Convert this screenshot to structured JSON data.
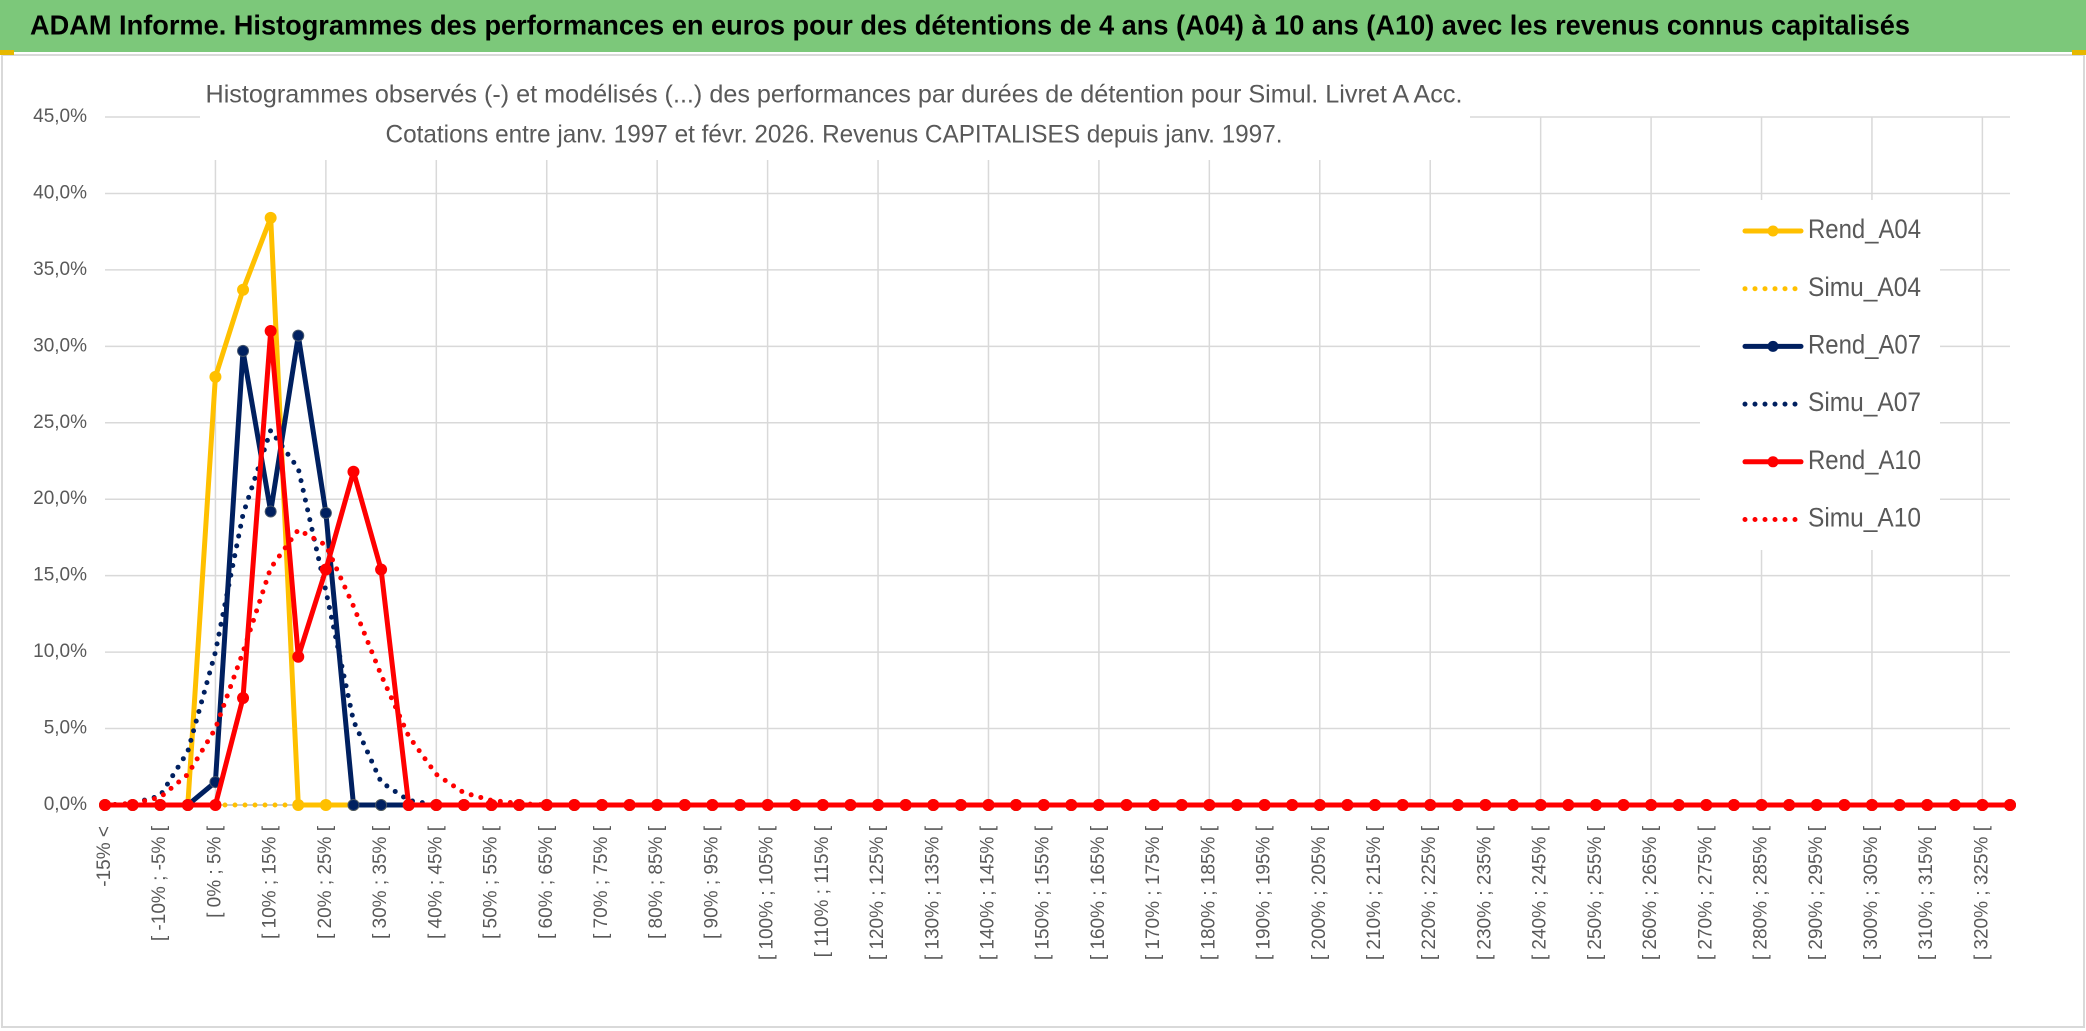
{
  "header": {
    "title": "ADAM Informe. Histogrammes des performances en euros pour des détentions de 4 ans (A04) à 10 ans (A10) avec les revenus connus capitalisés"
  },
  "chart_data": {
    "type": "line",
    "title": "Histogrammes observés (-) et modélisés (...) des performances par durées de détention pour Simul. Livret A Acc.",
    "subtitle": "Cotations entre janv. 1997 et févr. 2026. Revenus CAPITALISES depuis janv. 1997.",
    "categories": [
      "-15% <",
      null,
      "[ -10% ; -5% [",
      null,
      "[ 0% ; 5% [",
      null,
      "[ 10% ; 15% [",
      null,
      "[ 20% ; 25% [",
      null,
      "[ 30% ; 35% [",
      null,
      "[ 40% ; 45% [",
      null,
      "[ 50% ; 55% [",
      null,
      "[ 60% ; 65% [",
      null,
      "[ 70% ; 75% [",
      null,
      "[ 80% ; 85% [",
      null,
      "[ 90% ; 95% [",
      null,
      "[ 100% ; 105% [",
      null,
      "[ 110% ; 115% [",
      null,
      "[ 120% ; 125% [",
      null,
      "[ 130% ; 135% [",
      null,
      "[ 140% ; 145% [",
      null,
      "[ 150% ; 155% [",
      null,
      "[ 160% ; 165% [",
      null,
      "[ 170% ; 175% [",
      null,
      "[ 180% ; 185% [",
      null,
      "[ 190% ; 195% [",
      null,
      "[ 200% ; 205% [",
      null,
      "[ 210% ; 215% [",
      null,
      "[ 220% ; 225% [",
      null,
      "[ 230% ; 235% [",
      null,
      "[ 240% ; 245% [",
      null,
      "[ 250% ; 255% [",
      null,
      "[ 260% ; 265% [",
      null,
      "[ 270% ; 275% [",
      null,
      "[ 280% ; 285% [",
      null,
      "[ 290% ; 295% [",
      null,
      "[ 300% ; 305% [",
      null,
      "[ 310% ; 315% [",
      null,
      "[ 320% ; 325% [",
      null
    ],
    "series": [
      {
        "name": "Rend_A04",
        "color": "#ffc000",
        "style": "solid",
        "values": [
          0,
          0,
          0,
          0,
          28,
          33.7,
          38.4,
          0,
          0,
          0,
          0,
          0,
          0,
          0,
          0,
          0,
          0,
          0,
          0,
          0,
          0,
          0,
          0,
          0,
          0,
          0,
          0,
          0,
          0,
          0,
          0,
          0,
          0,
          0,
          0,
          0,
          0,
          0,
          0,
          0,
          0,
          0,
          0,
          0,
          0,
          0,
          0,
          0,
          0,
          0,
          0,
          0,
          0,
          0,
          0,
          0,
          0,
          0,
          0,
          0,
          0,
          0,
          0,
          0,
          0,
          0,
          0,
          0,
          0,
          0
        ]
      },
      {
        "name": "Simu_A04",
        "color": "#ffc000",
        "style": "dotted",
        "values": [
          0,
          0,
          0,
          0,
          0,
          0,
          0,
          0,
          0,
          0,
          0,
          0,
          0,
          0,
          0,
          0,
          0,
          0,
          0,
          0,
          0,
          0,
          0,
          0,
          0,
          0,
          0,
          0,
          0,
          0,
          0,
          0,
          0,
          0,
          0,
          0,
          0,
          0,
          0,
          0,
          0,
          0,
          0,
          0,
          0,
          0,
          0,
          0,
          0,
          0,
          0,
          0,
          0,
          0,
          0,
          0,
          0,
          0,
          0,
          0,
          0,
          0,
          0,
          0,
          0,
          0,
          0,
          0,
          0,
          0
        ]
      },
      {
        "name": "Rend_A07",
        "color": "#002060",
        "style": "solid",
        "values": [
          0,
          0,
          0,
          0,
          1.5,
          29.7,
          19.2,
          30.7,
          19.1,
          0,
          0,
          0,
          0,
          0,
          0,
          0,
          0,
          0,
          0,
          0,
          0,
          0,
          0,
          0,
          0,
          0,
          0,
          0,
          0,
          0,
          0,
          0,
          0,
          0,
          0,
          0,
          0,
          0,
          0,
          0,
          0,
          0,
          0,
          0,
          0,
          0,
          0,
          0,
          0,
          0,
          0,
          0,
          0,
          0,
          0,
          0,
          0,
          0,
          0,
          0,
          0,
          0,
          0,
          0,
          0,
          0,
          0,
          0,
          0,
          0
        ]
      },
      {
        "name": "Simu_A07",
        "color": "#002060",
        "style": "dotted",
        "values": [
          0,
          0.1,
          0.6,
          3.5,
          10,
          19,
          24.5,
          22,
          14,
          5.5,
          1.5,
          0.3,
          0,
          0,
          0,
          0,
          0,
          0,
          0,
          0,
          0,
          0,
          0,
          0,
          0,
          0,
          0,
          0,
          0,
          0,
          0,
          0,
          0,
          0,
          0,
          0,
          0,
          0,
          0,
          0,
          0,
          0,
          0,
          0,
          0,
          0,
          0,
          0,
          0,
          0,
          0,
          0,
          0,
          0,
          0,
          0,
          0,
          0,
          0,
          0,
          0,
          0,
          0,
          0,
          0,
          0,
          0,
          0,
          0,
          0
        ]
      },
      {
        "name": "Rend_A10",
        "color": "#ff0000",
        "style": "solid",
        "values": [
          0,
          0,
          0,
          0,
          0,
          7,
          31,
          9.7,
          15.4,
          21.8,
          15.4,
          0,
          0,
          0,
          0,
          0,
          0,
          0,
          0,
          0,
          0,
          0,
          0,
          0,
          0,
          0,
          0,
          0,
          0,
          0,
          0,
          0,
          0,
          0,
          0,
          0,
          0,
          0,
          0,
          0,
          0,
          0,
          0,
          0,
          0,
          0,
          0,
          0,
          0,
          0,
          0,
          0,
          0,
          0,
          0,
          0,
          0,
          0,
          0,
          0,
          0,
          0,
          0,
          0,
          0,
          0,
          0,
          0,
          0,
          0
        ]
      },
      {
        "name": "Simu_A10",
        "color": "#ff0000",
        "style": "dotted",
        "values": [
          0,
          0.1,
          0.5,
          2,
          5,
          10,
          15.5,
          18,
          17,
          13,
          8.5,
          4.5,
          2,
          0.8,
          0.3,
          0.1,
          0,
          0,
          0,
          0,
          0,
          0,
          0,
          0,
          0,
          0,
          0,
          0,
          0,
          0,
          0,
          0,
          0,
          0,
          0,
          0,
          0,
          0,
          0,
          0,
          0,
          0,
          0,
          0,
          0,
          0,
          0,
          0,
          0,
          0,
          0,
          0,
          0,
          0,
          0,
          0,
          0,
          0,
          0,
          0,
          0,
          0,
          0,
          0,
          0,
          0,
          0,
          0,
          0,
          0
        ]
      }
    ],
    "ylim": [
      0,
      45
    ],
    "yticks": [
      {
        "value": 0,
        "label": "0,0%"
      },
      {
        "value": 5,
        "label": "5,0%"
      },
      {
        "value": 10,
        "label": "10,0%"
      },
      {
        "value": 15,
        "label": "15,0%"
      },
      {
        "value": 20,
        "label": "20,0%"
      },
      {
        "value": 25,
        "label": "25,0%"
      },
      {
        "value": 30,
        "label": "30,0%"
      },
      {
        "value": 35,
        "label": "35,0%"
      },
      {
        "value": 40,
        "label": "40,0%"
      },
      {
        "value": 45,
        "label": "45,0%"
      }
    ],
    "grid": true,
    "legend": "top-right"
  }
}
